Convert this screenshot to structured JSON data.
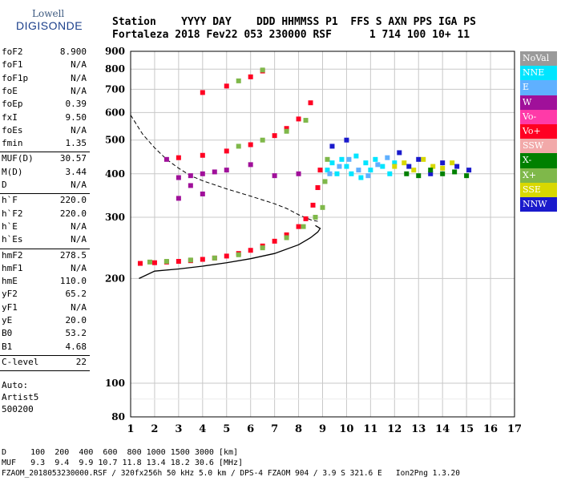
{
  "logo": {
    "line1": "Lowell",
    "line2": "DIGISONDE"
  },
  "header": {
    "row1": "Station    YYYY DAY    DDD HHMMSS P1  FFS S AXN PPS IGA PS",
    "row2": "Fortaleza 2018 Fev22 053 230000 RSF      1 714 100 10+ 11"
  },
  "params": [
    {
      "name": "foF2",
      "value": "8.900"
    },
    {
      "name": "foF1",
      "value": "N/A"
    },
    {
      "name": "foF1p",
      "value": "N/A"
    },
    {
      "name": "foE",
      "value": "N/A"
    },
    {
      "name": "foEp",
      "value": "0.39"
    },
    {
      "name": "fxI",
      "value": "9.50"
    },
    {
      "name": "foEs",
      "value": "N/A"
    },
    {
      "name": "fmin",
      "value": "1.35"
    },
    {
      "name": "MUF(D)",
      "value": "30.57"
    },
    {
      "name": "M(D)",
      "value": "3.44"
    },
    {
      "name": "D",
      "value": "N/A"
    },
    {
      "name": "h`F",
      "value": "220.0"
    },
    {
      "name": "h`F2",
      "value": "220.0"
    },
    {
      "name": "h`E",
      "value": "N/A"
    },
    {
      "name": "h`Es",
      "value": "N/A"
    },
    {
      "name": "hmF2",
      "value": "278.5"
    },
    {
      "name": "hmF1",
      "value": "N/A"
    },
    {
      "name": "hmE",
      "value": "110.0"
    },
    {
      "name": "yF2",
      "value": "65.2"
    },
    {
      "name": "yF1",
      "value": "N/A"
    },
    {
      "name": "yE",
      "value": "20.0"
    },
    {
      "name": "B0",
      "value": "53.2"
    },
    {
      "name": "B1",
      "value": "4.68"
    },
    {
      "name": "C-level",
      "value": "22"
    }
  ],
  "auto": {
    "l1": "Auto:",
    "l2": "Artist5",
    "l3": "500200"
  },
  "legend": [
    {
      "label": "NoVal",
      "color": "#9a9a9a"
    },
    {
      "label": "NNE",
      "color": "#00e5ff"
    },
    {
      "label": "E",
      "color": "#5fb0ff"
    },
    {
      "label": "W",
      "color": "#a0109a"
    },
    {
      "label": "Vo-",
      "color": "#ff3aa8"
    },
    {
      "label": "Vo+",
      "color": "#ff0022"
    },
    {
      "label": "SSW",
      "color": "#f2a9a9"
    },
    {
      "label": "X-",
      "color": "#008000"
    },
    {
      "label": "X+",
      "color": "#7fb84a"
    },
    {
      "label": "SSE",
      "color": "#d8d800"
    },
    {
      "label": "NNW",
      "color": "#1a1acc"
    }
  ],
  "bottom": {
    "row1": "D     100  200  400  600  800 1000 1500 3000 [km]",
    "row2": "MUF   9.3  9.4  9.9 10.7 11.8 13.4 18.2 30.6 [MHz]",
    "row3": "FZAOM_2018053230000.RSF / 320fx256h 50 kHz 5.0 km / DPS-4 FZAOM 904 / 3.9 S 321.6 E   Ion2Png 1.3.20"
  },
  "chart_data": {
    "type": "scatter",
    "xlim": [
      1,
      17
    ],
    "ylim": [
      80,
      900
    ],
    "y_scale": "log",
    "x_ticks": [
      1,
      2,
      3,
      4,
      5,
      6,
      7,
      8,
      9,
      10,
      11,
      12,
      13,
      14,
      15,
      16,
      17
    ],
    "y_ticks": [
      80,
      100,
      200,
      300,
      400,
      500,
      600,
      700,
      800,
      900
    ],
    "grid": true,
    "legend_position": "right",
    "series": [
      {
        "name": "Vo+",
        "points": [
          [
            1.4,
            221
          ],
          [
            2,
            222
          ],
          [
            2.5,
            223
          ],
          [
            3,
            224
          ],
          [
            3.5,
            225
          ],
          [
            4,
            227
          ],
          [
            4.5,
            229
          ],
          [
            5,
            232
          ],
          [
            5.5,
            236
          ],
          [
            6,
            241
          ],
          [
            6.5,
            248
          ],
          [
            7,
            256
          ],
          [
            7.5,
            267
          ],
          [
            8,
            282
          ],
          [
            8.3,
            297
          ],
          [
            8.6,
            325
          ],
          [
            8.8,
            365
          ],
          [
            8.9,
            410
          ],
          [
            3,
            445
          ],
          [
            4,
            452
          ],
          [
            5,
            465
          ],
          [
            6,
            485
          ],
          [
            7,
            515
          ],
          [
            7.5,
            540
          ],
          [
            8,
            575
          ],
          [
            8.5,
            640
          ],
          [
            4,
            685
          ],
          [
            5,
            715
          ],
          [
            6,
            760
          ],
          [
            6.5,
            790
          ]
        ]
      },
      {
        "name": "X+",
        "points": [
          [
            1.8,
            223
          ],
          [
            2.5,
            224
          ],
          [
            3.5,
            226
          ],
          [
            4.5,
            229
          ],
          [
            5.5,
            234
          ],
          [
            6.5,
            245
          ],
          [
            7.5,
            262
          ],
          [
            8.2,
            282
          ],
          [
            8.7,
            300
          ],
          [
            9,
            320
          ],
          [
            9.1,
            380
          ],
          [
            9.2,
            440
          ],
          [
            5.5,
            480
          ],
          [
            6.5,
            500
          ],
          [
            7.5,
            530
          ],
          [
            8.3,
            570
          ],
          [
            5.5,
            740
          ],
          [
            6.5,
            795
          ]
        ]
      },
      {
        "name": "W",
        "points": [
          [
            3,
            390
          ],
          [
            3.5,
            395
          ],
          [
            4,
            400
          ],
          [
            4.5,
            405
          ],
          [
            5,
            410
          ],
          [
            3,
            340
          ],
          [
            4,
            350
          ],
          [
            3.5,
            370
          ],
          [
            6,
            425
          ],
          [
            7,
            395
          ],
          [
            8,
            400
          ],
          [
            2.5,
            440
          ]
        ]
      },
      {
        "name": "NNE",
        "points": [
          [
            9.2,
            410
          ],
          [
            9.4,
            430
          ],
          [
            9.6,
            400
          ],
          [
            9.8,
            440
          ],
          [
            10,
            420
          ],
          [
            10.2,
            400
          ],
          [
            10.4,
            450
          ],
          [
            10.6,
            390
          ],
          [
            10.8,
            430
          ],
          [
            11,
            410
          ],
          [
            11.2,
            440
          ],
          [
            11.5,
            420
          ],
          [
            11.8,
            400
          ],
          [
            12,
            430
          ]
        ]
      },
      {
        "name": "E",
        "points": [
          [
            9.3,
            400
          ],
          [
            9.7,
            420
          ],
          [
            10.1,
            440
          ],
          [
            10.5,
            410
          ],
          [
            10.9,
            395
          ],
          [
            11.3,
            425
          ],
          [
            11.7,
            445
          ]
        ]
      },
      {
        "name": "SSE",
        "points": [
          [
            12,
            420
          ],
          [
            12.4,
            430
          ],
          [
            12.8,
            410
          ],
          [
            13.2,
            440
          ],
          [
            13.6,
            420
          ],
          [
            14,
            415
          ],
          [
            14.4,
            430
          ]
        ]
      },
      {
        "name": "NNW",
        "points": [
          [
            9.4,
            480
          ],
          [
            10,
            500
          ],
          [
            12.2,
            460
          ],
          [
            12.6,
            420
          ],
          [
            13,
            440
          ],
          [
            13.5,
            400
          ],
          [
            14,
            430
          ],
          [
            14.6,
            420
          ],
          [
            15.1,
            410
          ]
        ]
      },
      {
        "name": "X-",
        "points": [
          [
            12.5,
            400
          ],
          [
            13,
            395
          ],
          [
            13.5,
            410
          ],
          [
            14,
            400
          ],
          [
            14.5,
            405
          ],
          [
            15,
            395
          ]
        ]
      }
    ],
    "profile": [
      [
        1.35,
        200
      ],
      [
        2,
        210
      ],
      [
        3,
        213
      ],
      [
        4,
        217
      ],
      [
        5,
        222
      ],
      [
        6,
        228
      ],
      [
        7,
        236
      ],
      [
        8,
        250
      ],
      [
        8.5,
        262
      ],
      [
        8.8,
        272
      ],
      [
        8.9,
        278.5
      ],
      [
        8.7,
        284
      ]
    ],
    "dashed_curve": [
      [
        1,
        590
      ],
      [
        1.5,
        520
      ],
      [
        2,
        475
      ],
      [
        2.5,
        440
      ],
      [
        3,
        415
      ],
      [
        3.5,
        395
      ],
      [
        4,
        382
      ],
      [
        5,
        362
      ],
      [
        6,
        345
      ],
      [
        7,
        328
      ],
      [
        7.5,
        318
      ],
      [
        8,
        305
      ],
      [
        8.5,
        295
      ],
      [
        8.8,
        292
      ]
    ]
  }
}
